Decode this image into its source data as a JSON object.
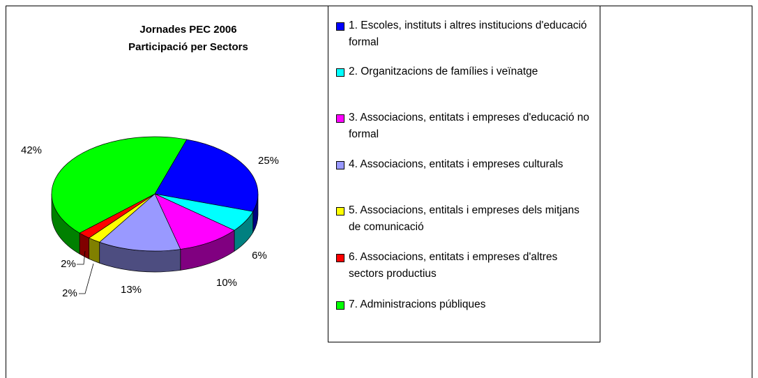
{
  "chart_data": {
    "type": "pie",
    "title": "Jornades PEC 2006",
    "subtitle": "Participació per Sectors",
    "categories": [
      "1. Escoles, instituts i altres institucions d'educació formal",
      "2. Organitzacions de famílies i veïnatge",
      "3. Associacions, entitats i empreses d'educació no formal",
      "4. Associacions, entitats i empreses culturals",
      "5. Associacions, entitals i empreses dels mitjans de comunicació",
      "6. Associacions, entitats i empreses d'altres sectors productius",
      "7. Administracions públiques"
    ],
    "values": [
      25,
      6,
      10,
      13,
      2,
      2,
      42
    ],
    "value_labels": [
      "25%",
      "6%",
      "10%",
      "13%",
      "2%",
      "2%",
      "42%"
    ],
    "colors": [
      "#0000ff",
      "#00ffff",
      "#ff00ff",
      "#9999ff",
      "#ffff00",
      "#ff0000",
      "#00ff00"
    ],
    "legend": "right"
  }
}
